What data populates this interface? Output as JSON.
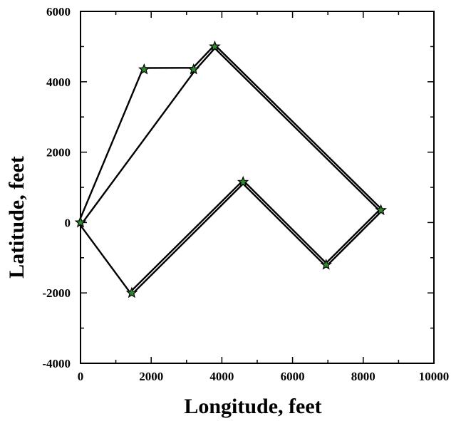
{
  "chart_data": {
    "type": "line",
    "title": "",
    "xlabel": "Longitude, feet",
    "ylabel": "Latitude, feet",
    "xlim": [
      0,
      10000
    ],
    "ylim": [
      -4000,
      6000
    ],
    "x_ticks": [
      0,
      2000,
      4000,
      6000,
      8000,
      10000
    ],
    "y_ticks": [
      -4000,
      -2000,
      0,
      2000,
      4000,
      6000
    ],
    "x_tick_labels": [
      "0",
      "2000",
      "4000",
      "6000",
      "8000",
      "10000"
    ],
    "y_tick_labels": [
      "-4000",
      "-2000",
      "0",
      "2000",
      "4000",
      "6000"
    ],
    "x_minor_ticks": [
      1000,
      3000,
      5000,
      7000,
      9000
    ],
    "y_minor_ticks": [
      -3000,
      -1000,
      1000,
      3000,
      5000
    ],
    "grid": false,
    "legend": "none",
    "marker": "star",
    "colors": {
      "line": "#000000",
      "marker_fill": "#2e8b2e",
      "marker_edge": "#000000"
    },
    "series": [
      {
        "x": [
          0,
          1800,
          3200,
          3800,
          8500,
          6950,
          4600,
          1450,
          0
        ],
        "y": [
          0,
          4350,
          4350,
          5000,
          350,
          -1200,
          1150,
          -2000,
          0
        ]
      },
      {
        "x": [
          0,
          3200,
          3800,
          8500,
          6950,
          4600,
          1450
        ],
        "y": [
          0,
          4350,
          5000,
          350,
          -1200,
          1150,
          -2000
        ]
      }
    ]
  }
}
